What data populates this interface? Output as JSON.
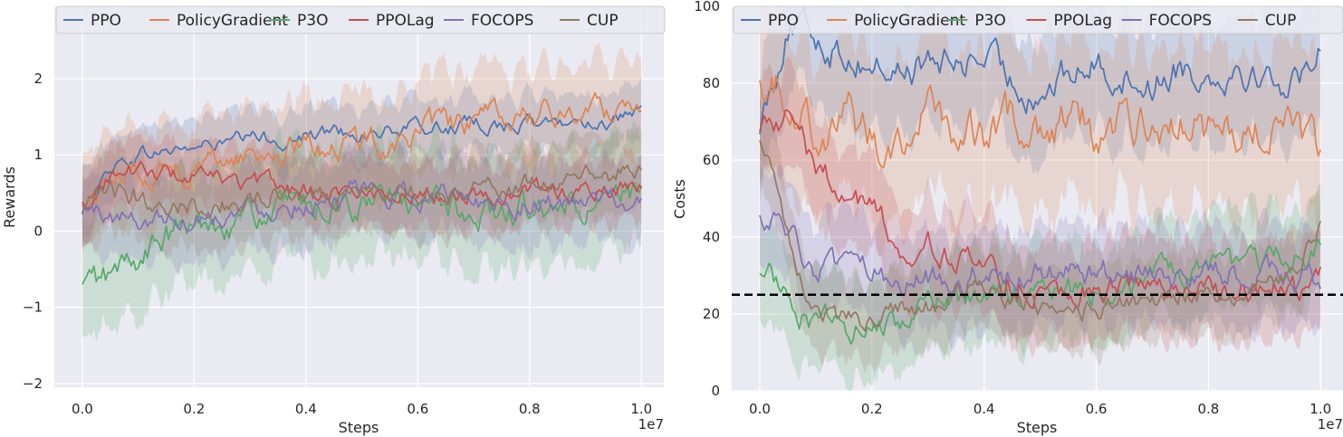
{
  "colors": {
    "panel_bg": "#eaeaf2",
    "grid": "#ffffff",
    "text": "#262626",
    "PPO": "#4c72b0",
    "PolicyGradient": "#dd8452",
    "P3O": "#55a868",
    "PPOLag": "#c44e52",
    "FOCOPS": "#8172b3",
    "CUP": "#937860",
    "threshold": "#000000"
  },
  "legend": [
    "PPO",
    "PolicyGradient",
    "P3O",
    "PPOLag",
    "FOCOPS",
    "CUP"
  ],
  "chart_data": [
    {
      "type": "line",
      "xlabel": "Steps",
      "ylabel": "Rewards",
      "x_offset_label": "1e7",
      "xlim": [
        -0.05,
        1.04
      ],
      "ylim": [
        -2.05,
        2.95
      ],
      "xticks": [
        0.0,
        0.2,
        0.4,
        0.6,
        0.8,
        1.0
      ],
      "xtick_labels": [
        "0.0",
        "0.2",
        "0.4",
        "0.6",
        "0.8",
        "1.0"
      ],
      "yticks": [
        -2,
        -1,
        0,
        1,
        2
      ],
      "ytick_labels": [
        "−2",
        "−1",
        "0",
        "1",
        "2"
      ],
      "grid": true,
      "legend_position": "top",
      "x": [
        0.0,
        0.05,
        0.1,
        0.15,
        0.2,
        0.25,
        0.3,
        0.35,
        0.4,
        0.45,
        0.5,
        0.55,
        0.6,
        0.65,
        0.7,
        0.75,
        0.8,
        0.85,
        0.9,
        0.95,
        1.0
      ],
      "series": [
        {
          "name": "PPO",
          "values": [
            0.2,
            0.85,
            1.0,
            1.05,
            1.1,
            1.15,
            1.2,
            1.2,
            1.25,
            1.3,
            1.3,
            1.3,
            1.35,
            1.35,
            1.4,
            1.4,
            1.4,
            1.4,
            1.45,
            1.45,
            1.5
          ],
          "band": 0.35
        },
        {
          "name": "PolicyGradient",
          "values": [
            0.3,
            0.7,
            0.8,
            0.8,
            0.85,
            0.95,
            1.0,
            1.05,
            1.1,
            1.15,
            1.15,
            1.2,
            1.3,
            1.35,
            1.4,
            1.45,
            1.5,
            1.5,
            1.6,
            1.6,
            1.7
          ],
          "band": 0.6
        },
        {
          "name": "P3O",
          "values": [
            -0.75,
            -0.6,
            -0.35,
            -0.1,
            0.05,
            0.15,
            0.2,
            0.25,
            0.3,
            0.35,
            0.35,
            0.35,
            0.3,
            0.35,
            0.25,
            0.2,
            0.3,
            0.2,
            0.3,
            0.35,
            0.4
          ],
          "band": 0.7
        },
        {
          "name": "PPOLag",
          "values": [
            0.35,
            0.75,
            0.8,
            0.75,
            0.7,
            0.65,
            0.6,
            0.6,
            0.55,
            0.55,
            0.5,
            0.5,
            0.5,
            0.5,
            0.5,
            0.5,
            0.55,
            0.5,
            0.5,
            0.55,
            0.55
          ],
          "band": 0.4
        },
        {
          "name": "FOCOPS",
          "values": [
            0.3,
            0.2,
            0.15,
            0.2,
            0.2,
            0.25,
            0.3,
            0.35,
            0.4,
            0.45,
            0.45,
            0.45,
            0.45,
            0.45,
            0.45,
            0.4,
            0.4,
            0.35,
            0.35,
            0.35,
            0.3
          ],
          "band": 0.5
        },
        {
          "name": "CUP",
          "values": [
            0.2,
            0.5,
            0.45,
            0.4,
            0.35,
            0.35,
            0.4,
            0.45,
            0.5,
            0.5,
            0.5,
            0.55,
            0.55,
            0.55,
            0.6,
            0.6,
            0.6,
            0.65,
            0.7,
            0.75,
            0.8
          ],
          "band": 0.5
        }
      ]
    },
    {
      "type": "line",
      "xlabel": "Steps",
      "ylabel": "Costs",
      "x_offset_label": "1e7",
      "xlim": [
        -0.05,
        1.04
      ],
      "ylim": [
        0,
        100
      ],
      "xticks": [
        0.0,
        0.2,
        0.4,
        0.6,
        0.8,
        1.0
      ],
      "xtick_labels": [
        "0.0",
        "0.2",
        "0.4",
        "0.6",
        "0.8",
        "1.0"
      ],
      "yticks": [
        0,
        20,
        40,
        60,
        80,
        100
      ],
      "ytick_labels": [
        "0",
        "20",
        "40",
        "60",
        "80",
        "100"
      ],
      "grid": true,
      "legend_position": "top",
      "threshold": 25,
      "x": [
        0.0,
        0.05,
        0.1,
        0.15,
        0.2,
        0.25,
        0.3,
        0.35,
        0.4,
        0.45,
        0.5,
        0.55,
        0.6,
        0.65,
        0.7,
        0.75,
        0.8,
        0.85,
        0.9,
        0.95,
        1.0
      ],
      "series": [
        {
          "name": "PPO",
          "values": [
            70,
            95,
            92,
            88,
            85,
            83,
            85,
            85,
            87,
            80,
            78,
            82,
            85,
            82,
            80,
            85,
            82,
            85,
            82,
            80,
            90
          ],
          "band": 15
        },
        {
          "name": "PolicyGradient",
          "values": [
            85,
            78,
            68,
            72,
            65,
            66,
            72,
            68,
            66,
            70,
            70,
            72,
            68,
            68,
            70,
            72,
            66,
            66,
            68,
            68,
            60
          ],
          "band": 20
        },
        {
          "name": "P3O",
          "values": [
            33,
            25,
            18,
            16,
            17,
            18,
            21,
            24,
            24,
            25,
            25,
            26,
            26,
            28,
            30,
            30,
            30,
            32,
            33,
            34,
            38
          ],
          "band": 12
        },
        {
          "name": "PPOLag",
          "values": [
            70,
            72,
            58,
            52,
            48,
            38,
            38,
            36,
            30,
            28,
            27,
            27,
            27,
            27,
            27,
            27,
            27,
            27,
            27,
            27,
            32
          ],
          "band": 12
        },
        {
          "name": "FOCOPS",
          "values": [
            48,
            40,
            32,
            30,
            30,
            30,
            30,
            30,
            30,
            30,
            30,
            30,
            30,
            30,
            30,
            30,
            30,
            30,
            30,
            30,
            28
          ],
          "band": 12
        },
        {
          "name": "CUP",
          "values": [
            67,
            40,
            22,
            18,
            18,
            20,
            22,
            25,
            25,
            24,
            22,
            22,
            22,
            24,
            24,
            26,
            24,
            25,
            28,
            30,
            42
          ],
          "band": 10
        }
      ]
    }
  ]
}
